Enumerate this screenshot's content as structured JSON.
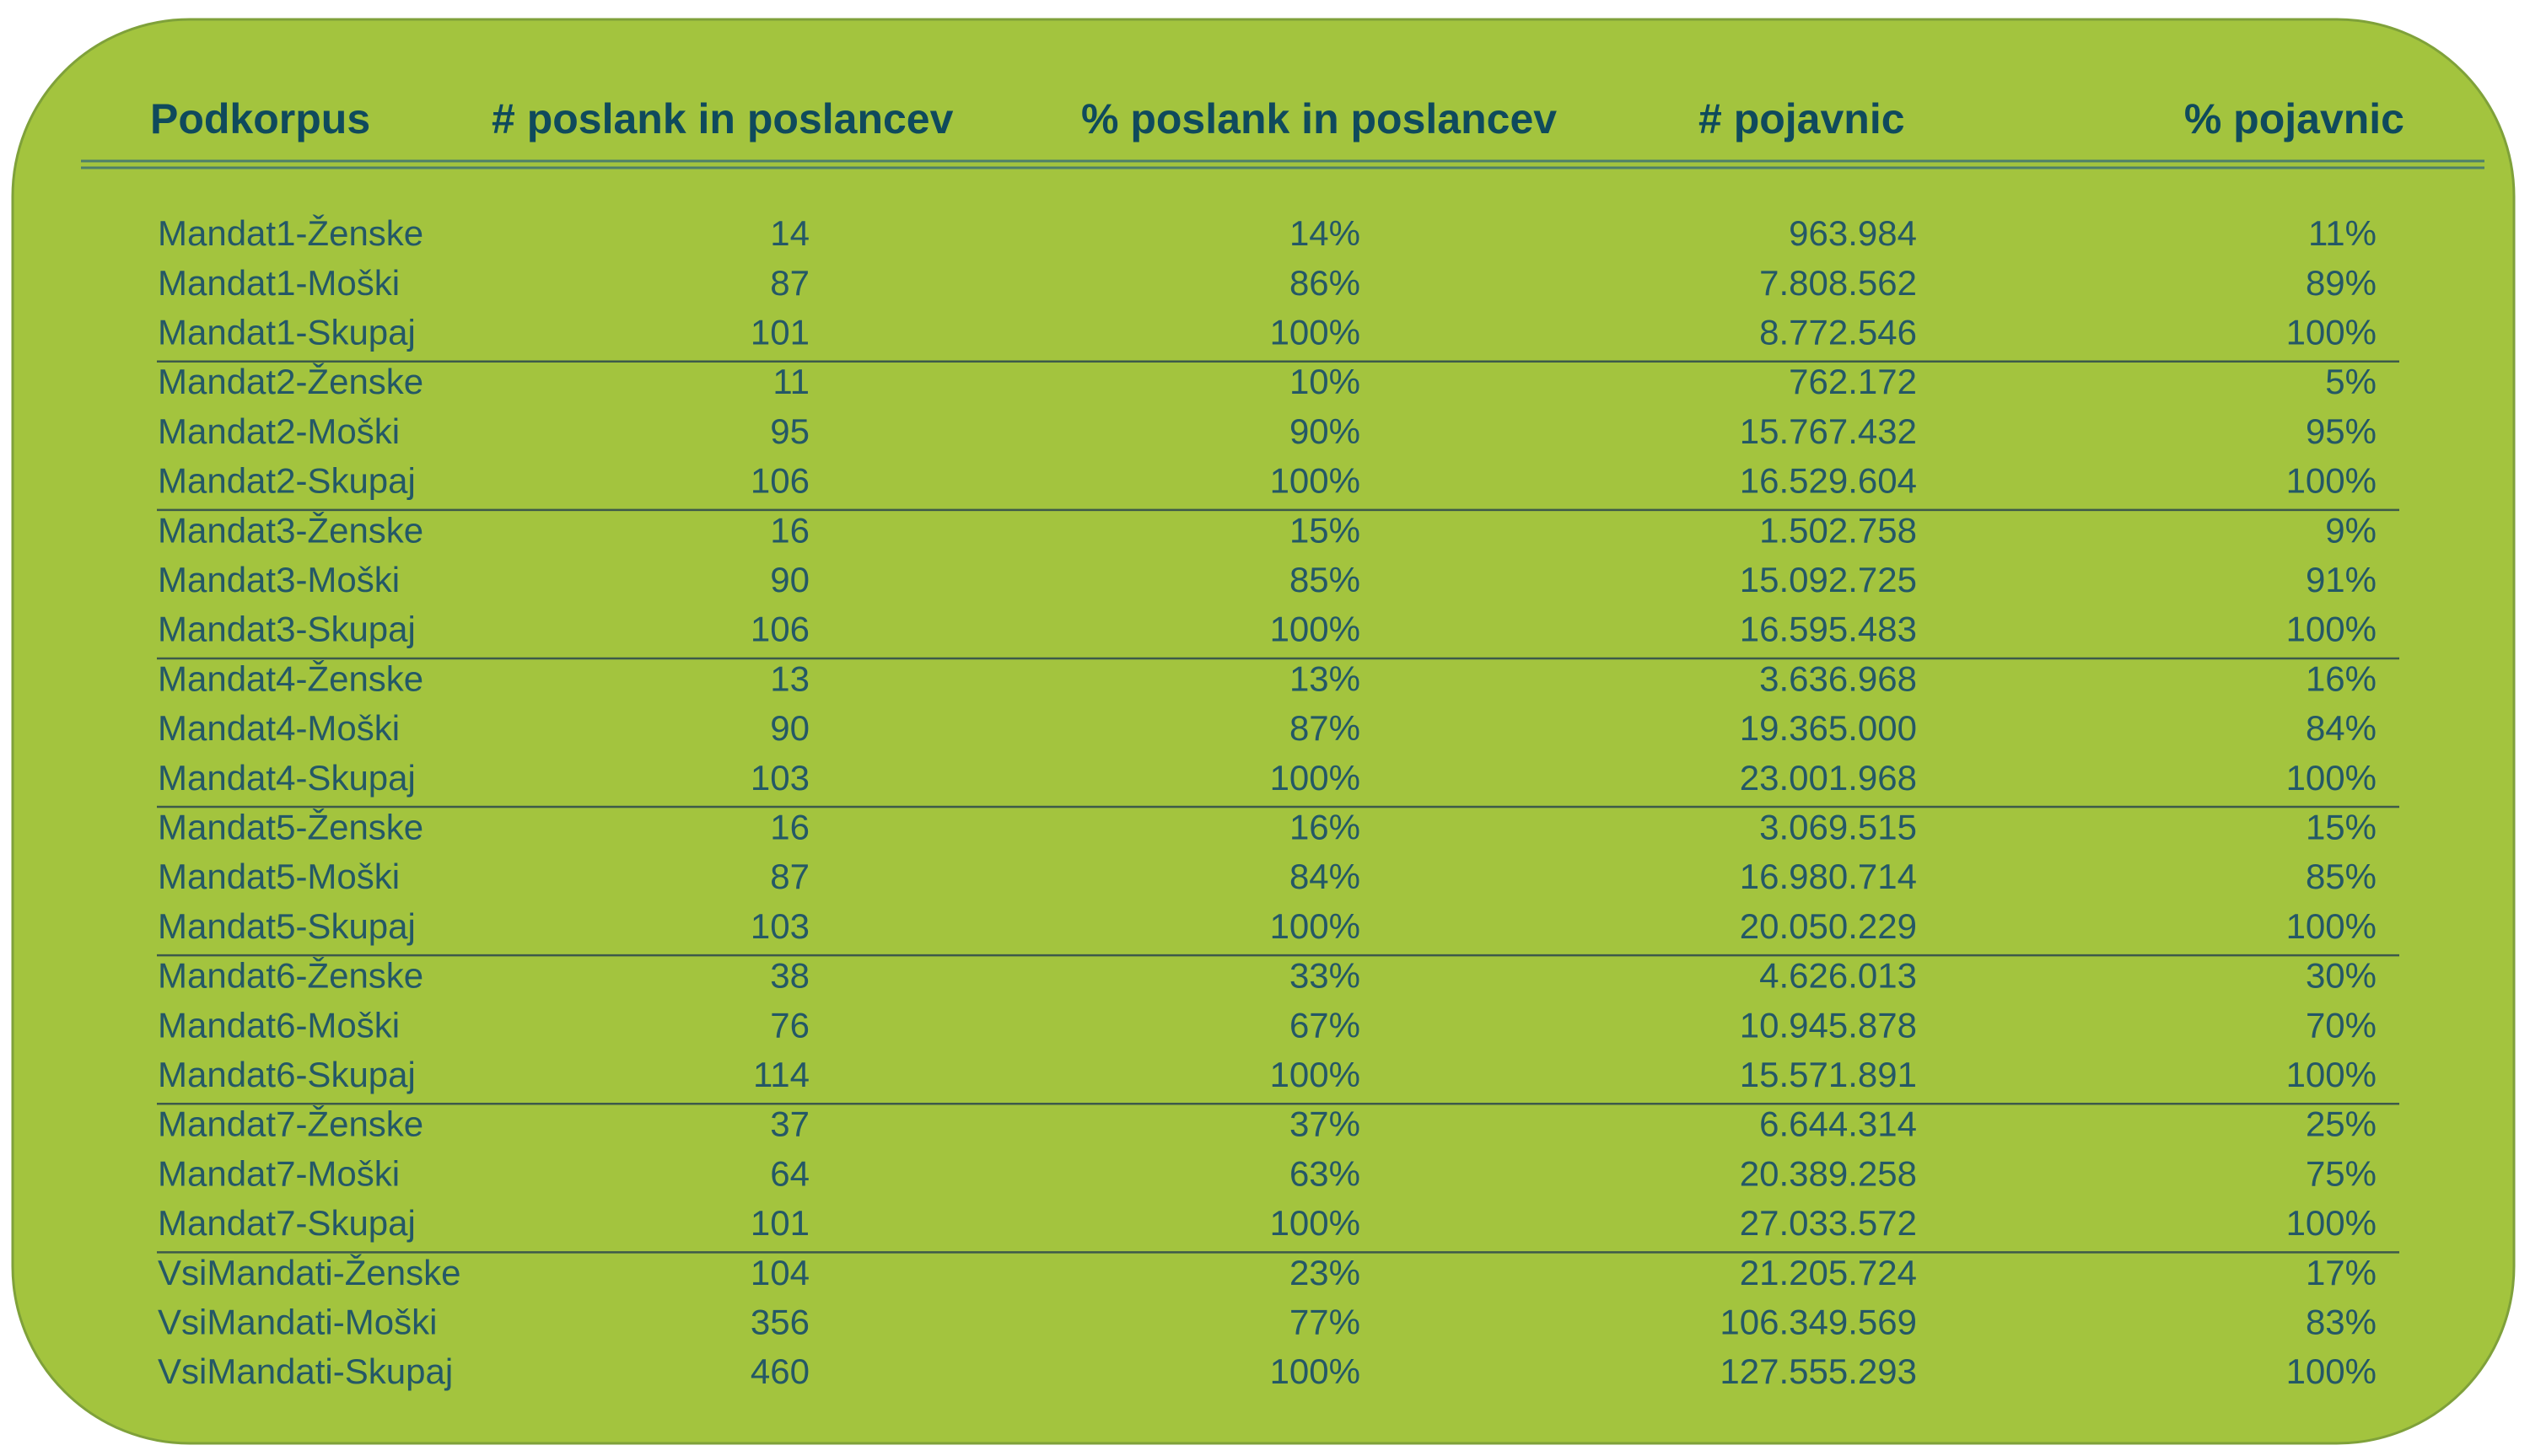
{
  "table": {
    "header": [
      "Podkorpus",
      "# poslank in poslancev",
      "% poslank in poslancev",
      "# pojavnic",
      "% pojavnic"
    ],
    "rows": [
      [
        "Mandat1-Ženske",
        "14",
        "14%",
        "963.984",
        "11%"
      ],
      [
        "Mandat1-Moški",
        "87",
        "86%",
        "7.808.562",
        "89%"
      ],
      [
        "Mandat1-Skupaj",
        "101",
        "100%",
        "8.772.546",
        "100%"
      ],
      [
        "Mandat2-Ženske",
        "11",
        "10%",
        "762.172",
        "5%"
      ],
      [
        "Mandat2-Moški",
        "95",
        "90%",
        "15.767.432",
        "95%"
      ],
      [
        "Mandat2-Skupaj",
        "106",
        "100%",
        "16.529.604",
        "100%"
      ],
      [
        "Mandat3-Ženske",
        "16",
        "15%",
        "1.502.758",
        "9%"
      ],
      [
        "Mandat3-Moški",
        "90",
        "85%",
        "15.092.725",
        "91%"
      ],
      [
        "Mandat3-Skupaj",
        "106",
        "100%",
        "16.595.483",
        "100%"
      ],
      [
        "Mandat4-Ženske",
        "13",
        "13%",
        "3.636.968",
        "16%"
      ],
      [
        "Mandat4-Moški",
        "90",
        "87%",
        "19.365.000",
        "84%"
      ],
      [
        "Mandat4-Skupaj",
        "103",
        "100%",
        "23.001.968",
        "100%"
      ],
      [
        "Mandat5-Ženske",
        "16",
        "16%",
        "3.069.515",
        "15%"
      ],
      [
        "Mandat5-Moški",
        "87",
        "84%",
        "16.980.714",
        "85%"
      ],
      [
        "Mandat5-Skupaj",
        "103",
        "100%",
        "20.050.229",
        "100%"
      ],
      [
        "Mandat6-Ženske",
        "38",
        "33%",
        "4.626.013",
        "30%"
      ],
      [
        "Mandat6-Moški",
        "76",
        "67%",
        "10.945.878",
        "70%"
      ],
      [
        "Mandat6-Skupaj",
        "114",
        "100%",
        "15.571.891",
        "100%"
      ],
      [
        "Mandat7-Ženske",
        "37",
        "37%",
        "6.644.314",
        "25%"
      ],
      [
        "Mandat7-Moški",
        "64",
        "63%",
        "20.389.258",
        "75%"
      ],
      [
        "Mandat7-Skupaj",
        "101",
        "100%",
        "27.033.572",
        "100%"
      ],
      [
        "VsiMandati-Ženske",
        "104",
        "23%",
        "21.205.724",
        "17%"
      ],
      [
        "VsiMandati-Moški",
        "356",
        "77%",
        "106.349.569",
        "83%"
      ],
      [
        "VsiMandati-Skupaj",
        "460",
        "100%",
        "127.555.293",
        "100%"
      ]
    ]
  }
}
